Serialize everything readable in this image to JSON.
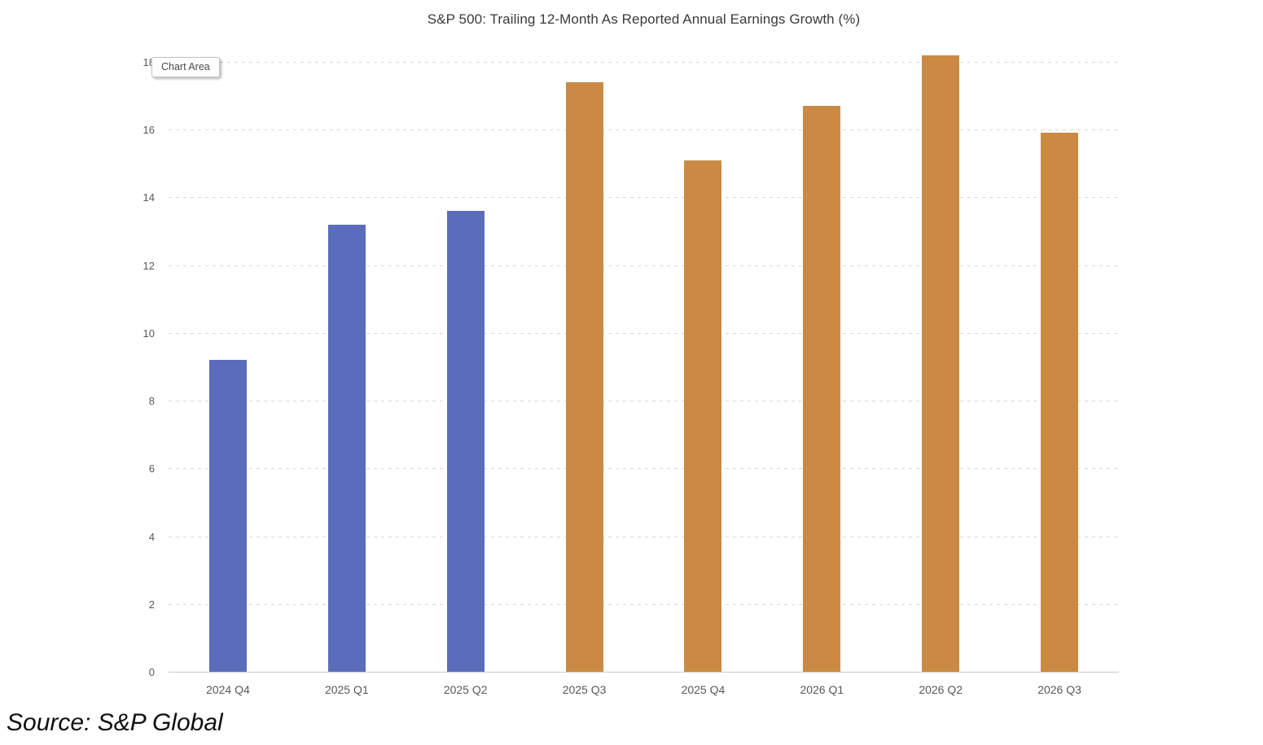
{
  "chart": {
    "title": "S&P 500: Trailing 12-Month As Reported Annual Earnings Growth (%)"
  },
  "chart_data": {
    "type": "bar",
    "title": "S&P 500: Trailing 12-Month As Reported Annual Earnings Growth (%)",
    "categories": [
      "2024 Q4",
      "2025 Q1",
      "2025 Q2",
      "2025 Q3",
      "2025 Q4",
      "2026 Q1",
      "2026 Q2",
      "2026 Q3"
    ],
    "values": [
      9.2,
      13.2,
      13.6,
      17.4,
      15.1,
      16.7,
      18.2,
      15.9
    ],
    "bar_colors": [
      "#5B6CBA",
      "#5B6CBA",
      "#5B6CBA",
      "#CB8A44",
      "#CB8A44",
      "#CB8A44",
      "#CB8A44",
      "#CB8A44"
    ],
    "xlabel": "",
    "ylabel": "",
    "ylim": [
      0,
      18
    ],
    "ytick_step": 2,
    "yticks": [
      0,
      2,
      4,
      6,
      8,
      10,
      12,
      14,
      16,
      18
    ],
    "grid": "horizontal-dashed",
    "legend_position": "none",
    "gridline_color": "#D8D8D8",
    "axis_line_color": "#C9C9C9",
    "tick_label_color": "#595959",
    "accent_blue": "#5B6CBA",
    "accent_orange": "#CB8A44"
  },
  "overlay": {
    "tooltip_label": "Chart Area"
  },
  "footer": {
    "source": "Source: S&P Global"
  }
}
